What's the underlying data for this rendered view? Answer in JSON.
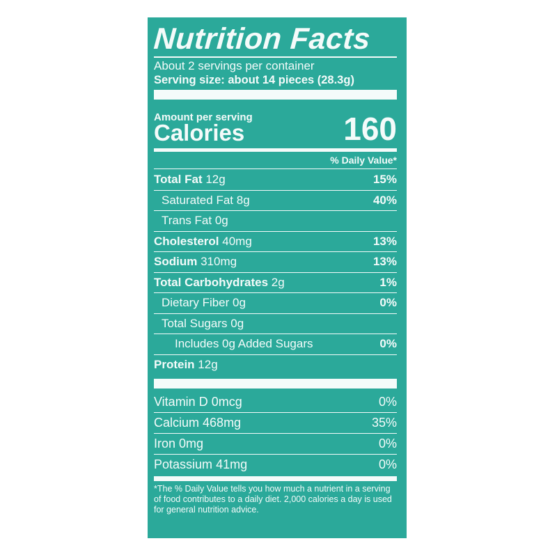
{
  "title": "Nutrition Facts",
  "servings_per_container": "About 2 servings per container",
  "serving_size": "Serving size: about 14 pieces (28.3g)",
  "amount_per_serving": "Amount per serving",
  "calories_label": "Calories",
  "calories_value": "160",
  "daily_value_header": "% Daily Value*",
  "nutrients": [
    {
      "name": "Total Fat",
      "amount": "12g",
      "dv": "15%"
    },
    {
      "name": "Saturated Fat",
      "amount": "8g",
      "dv": "40%"
    },
    {
      "name": "Trans Fat",
      "amount": "0g",
      "dv": ""
    },
    {
      "name": "Cholesterol",
      "amount": "40mg",
      "dv": "13%"
    },
    {
      "name": "Sodium",
      "amount": "310mg",
      "dv": "13%"
    },
    {
      "name": "Total Carbohydrates",
      "amount": "2g",
      "dv": "1%"
    },
    {
      "name": "Dietary Fiber",
      "amount": "0g",
      "dv": "0%"
    },
    {
      "name": "Total Sugars",
      "amount": "0g",
      "dv": ""
    },
    {
      "name": "Includes 0g Added Sugars",
      "amount": "",
      "dv": "0%"
    },
    {
      "name": "Protein",
      "amount": "12g",
      "dv": ""
    }
  ],
  "vitamins": [
    {
      "name": "Vitamin D",
      "amount": "0mcg",
      "dv": "0%"
    },
    {
      "name": "Calcium",
      "amount": "468mg",
      "dv": "35%"
    },
    {
      "name": "Iron",
      "amount": "0mg",
      "dv": "0%"
    },
    {
      "name": "Potassium",
      "amount": "41mg",
      "dv": "0%"
    }
  ],
  "footnote": "*The % Daily Value tells you how much a nutrient in a serving of food contributes to a daily diet. 2,000 calories a day is used for general nutrition advice.",
  "colors": {
    "background": "#2ba99a",
    "text": "#f4fbfa"
  }
}
